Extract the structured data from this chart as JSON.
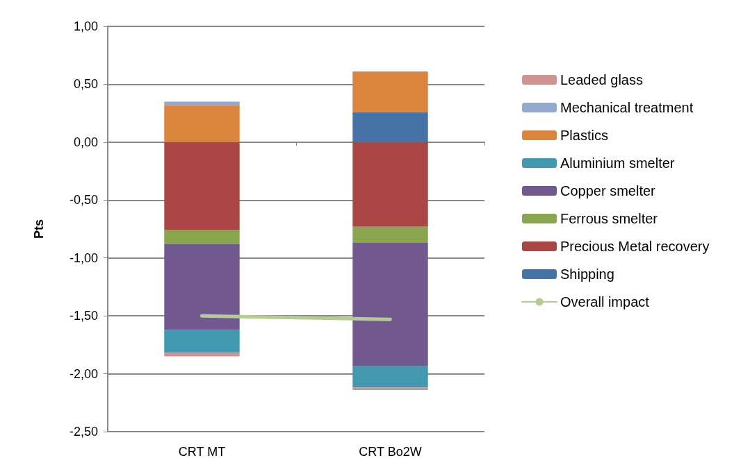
{
  "chart_data": {
    "type": "bar",
    "stacked": true,
    "ylabel": "Pts",
    "categories": [
      "CRT MT",
      "CRT Bo2W"
    ],
    "ylim": [
      -2.5,
      1
    ],
    "yticks": [
      {
        "value": -2.5,
        "label": "-2,50"
      },
      {
        "value": -2,
        "label": "-2,00"
      },
      {
        "value": -1.5,
        "label": "-1,50"
      },
      {
        "value": -1,
        "label": "-1,00"
      },
      {
        "value": -0.5,
        "label": "-0,50"
      },
      {
        "value": 0,
        "label": "0,00"
      },
      {
        "value": 0.5,
        "label": "0,50"
      },
      {
        "value": 1,
        "label": "1,00"
      }
    ],
    "grid": "y",
    "legend": "right",
    "marker": "none",
    "series": [
      {
        "name": "Shipping",
        "color": "#4572a7",
        "values": [
          null,
          0.26
        ]
      },
      {
        "name": "Precious Metal recovery",
        "color": "#aa4643",
        "values": [
          -0.76,
          -0.73
        ]
      },
      {
        "name": "Ferrous smelter",
        "color": "#89a54e",
        "values": [
          -0.12,
          -0.14
        ]
      },
      {
        "name": "Copper smelter",
        "color": "#71588f",
        "values": [
          -0.74,
          -1.06
        ]
      },
      {
        "name": "Aluminium smelter",
        "color": "#4198af",
        "values": [
          -0.2,
          -0.19
        ]
      },
      {
        "name": "Plastics",
        "color": "#db843d",
        "values": [
          0.32,
          0.35
        ]
      },
      {
        "name": "Mechanical treatment",
        "color": "#93a9cf",
        "values": [
          0.03,
          null
        ]
      },
      {
        "name": "Leaded glass",
        "color": "#d19392",
        "values": [
          -0.03,
          -0.02
        ]
      },
      {
        "name": "Overall impact",
        "type": "line",
        "color": "#b3cc8f",
        "values": [
          -1.5,
          -1.53
        ]
      }
    ]
  }
}
